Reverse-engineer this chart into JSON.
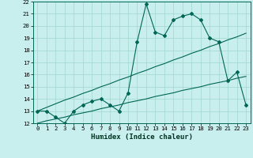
{
  "title": "",
  "xlabel": "Humidex (Indice chaleur)",
  "background_color": "#c8eeed",
  "grid_color": "#a0d8d0",
  "line_color": "#006655",
  "x_values": [
    0,
    1,
    2,
    3,
    4,
    5,
    6,
    7,
    8,
    9,
    10,
    11,
    12,
    13,
    14,
    15,
    16,
    17,
    18,
    19,
    20,
    21,
    22,
    23
  ],
  "main_line": [
    13,
    13,
    12.5,
    12,
    13,
    13.5,
    13.8,
    14,
    13.5,
    13,
    14.5,
    18.7,
    21.8,
    19.5,
    19.2,
    20.5,
    20.8,
    21,
    20.5,
    19,
    18.7,
    15.5,
    16.2,
    13.5
  ],
  "regression_line1": [
    13.0,
    13.3,
    13.6,
    13.9,
    14.15,
    14.45,
    14.7,
    15.0,
    15.25,
    15.55,
    15.8,
    16.1,
    16.35,
    16.65,
    16.9,
    17.2,
    17.45,
    17.75,
    18.0,
    18.3,
    18.55,
    18.85,
    19.1,
    19.4
  ],
  "regression_line2": [
    12.0,
    12.2,
    12.35,
    12.5,
    12.7,
    12.85,
    13.0,
    13.2,
    13.35,
    13.5,
    13.7,
    13.85,
    14.0,
    14.2,
    14.35,
    14.5,
    14.7,
    14.85,
    15.0,
    15.2,
    15.35,
    15.5,
    15.7,
    15.85
  ],
  "ylim": [
    12,
    22
  ],
  "xlim": [
    -0.5,
    23.5
  ],
  "yticks": [
    12,
    13,
    14,
    15,
    16,
    17,
    18,
    19,
    20,
    21,
    22
  ],
  "xticks": [
    0,
    1,
    2,
    3,
    4,
    5,
    6,
    7,
    8,
    9,
    10,
    11,
    12,
    13,
    14,
    15,
    16,
    17,
    18,
    19,
    20,
    21,
    22,
    23
  ],
  "tick_fontsize": 5.2,
  "label_fontsize": 6.5
}
